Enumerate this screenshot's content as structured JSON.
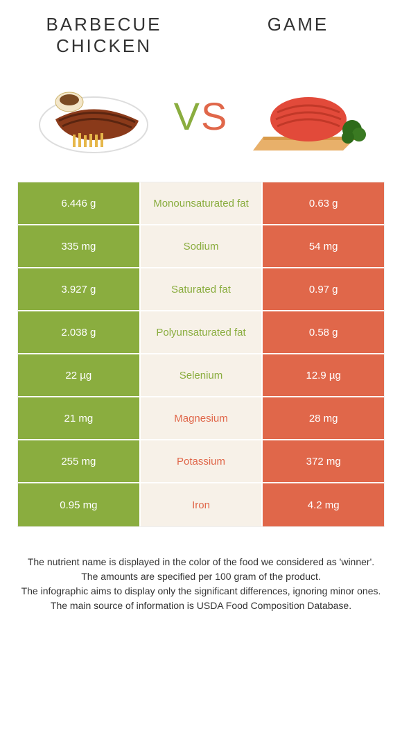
{
  "left_title": "Barbecue chicken",
  "right_title": "Game",
  "vs_v": "V",
  "vs_s": "S",
  "colors": {
    "green": "#8aad3f",
    "orange": "#e0674a",
    "mid_bg": "#f7f1e8"
  },
  "rows": [
    {
      "left": "6.446 g",
      "nutrient": "Monounsaturated fat",
      "right": "0.63 g",
      "winner": "green"
    },
    {
      "left": "335 mg",
      "nutrient": "Sodium",
      "right": "54 mg",
      "winner": "green"
    },
    {
      "left": "3.927 g",
      "nutrient": "Saturated fat",
      "right": "0.97 g",
      "winner": "green"
    },
    {
      "left": "2.038 g",
      "nutrient": "Polyunsaturated fat",
      "right": "0.58 g",
      "winner": "green"
    },
    {
      "left": "22 µg",
      "nutrient": "Selenium",
      "right": "12.9 µg",
      "winner": "green"
    },
    {
      "left": "21 mg",
      "nutrient": "Magnesium",
      "right": "28 mg",
      "winner": "orange"
    },
    {
      "left": "255 mg",
      "nutrient": "Potassium",
      "right": "372 mg",
      "winner": "orange"
    },
    {
      "left": "0.95 mg",
      "nutrient": "Iron",
      "right": "4.2 mg",
      "winner": "orange"
    }
  ],
  "footnotes": [
    "The nutrient name is displayed in the color of the food we considered as 'winner'.",
    "The amounts are specified per 100 gram of the product.",
    "The infographic aims to display only the significant differences, ignoring minor ones.",
    "The main source of information is USDA Food Composition Database."
  ]
}
